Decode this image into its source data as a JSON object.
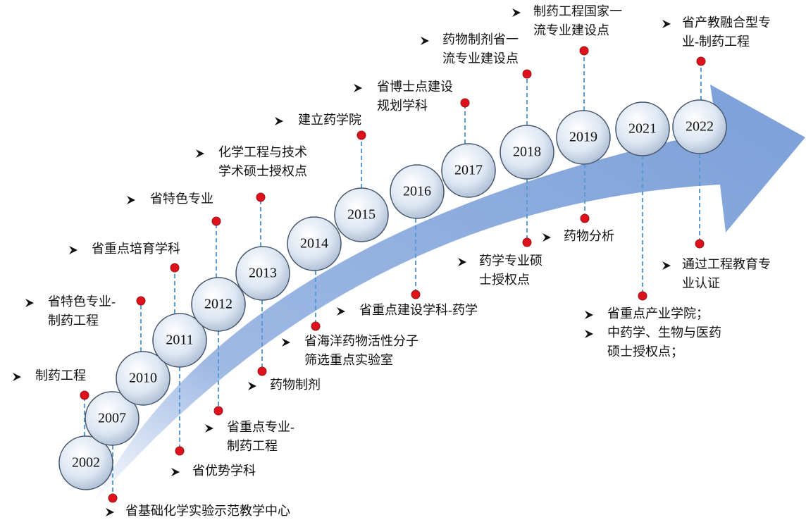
{
  "milestones": [
    {
      "year": "2002",
      "notes": [
        {
          "items": [
            [
              "制药工程"
            ]
          ]
        }
      ]
    },
    {
      "year": "2007",
      "notes": [
        {
          "items": [
            [
              "省基础化学实验示范教学中心"
            ]
          ]
        }
      ]
    },
    {
      "year": "2010",
      "notes": [
        {
          "items": [
            [
              "省特色专业-",
              "制药工程"
            ]
          ]
        }
      ]
    },
    {
      "year": "2011",
      "notes": [
        {
          "items": [
            [
              "省重点培育学科"
            ]
          ]
        },
        {
          "items": [
            [
              "省优势学科"
            ]
          ]
        }
      ]
    },
    {
      "year": "2012",
      "notes": [
        {
          "items": [
            [
              "省特色专业"
            ]
          ]
        },
        {
          "items": [
            [
              "省重点专业-",
              "制药工程"
            ]
          ]
        }
      ]
    },
    {
      "year": "2013",
      "notes": [
        {
          "items": [
            [
              "化学工程与技术",
              "学术硕士授权点"
            ]
          ]
        },
        {
          "items": [
            [
              "药物制剂"
            ]
          ]
        }
      ]
    },
    {
      "year": "2014",
      "notes": [
        {
          "items": [
            [
              "省海洋药物活性分子",
              "筛选重点实验室"
            ]
          ]
        }
      ]
    },
    {
      "year": "2015",
      "notes": [
        {
          "items": [
            [
              "建立药学院"
            ]
          ]
        }
      ]
    },
    {
      "year": "2016",
      "notes": [
        {
          "items": [
            [
              "省重点建设学科-药学"
            ]
          ]
        }
      ]
    },
    {
      "year": "2017",
      "notes": [
        {
          "items": [
            [
              "省博士点建设",
              "规划学科"
            ]
          ]
        }
      ]
    },
    {
      "year": "2018",
      "notes": [
        {
          "items": [
            [
              "药物制剂省一",
              "流专业建设点"
            ]
          ]
        },
        {
          "items": [
            [
              "药学专业硕",
              "士授权点"
            ]
          ]
        }
      ]
    },
    {
      "year": "2019",
      "notes": [
        {
          "items": [
            [
              "制药工程国家一",
              "流专业建设点"
            ]
          ]
        },
        {
          "items": [
            [
              "药物分析"
            ]
          ]
        }
      ]
    },
    {
      "year": "2021",
      "notes": [
        {
          "items": [
            [
              "省重点产业学院；"
            ],
            [
              "中药学、生物与医药",
              "硕士授权点；"
            ]
          ]
        }
      ]
    },
    {
      "year": "2022",
      "notes": [
        {
          "items": [
            [
              "省产教融合型专",
              "业-制药工程"
            ]
          ]
        },
        {
          "items": [
            [
              "通过工程教育专",
              "业认证"
            ]
          ]
        }
      ]
    }
  ]
}
